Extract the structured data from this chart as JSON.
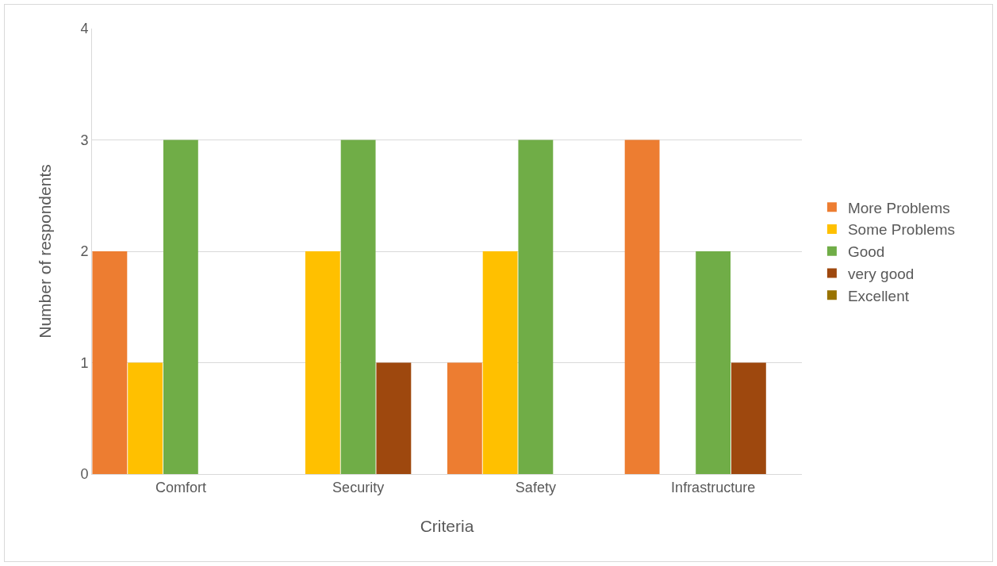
{
  "chart_data": {
    "type": "bar",
    "xlabel": "Criteria",
    "ylabel": "Number of respondents",
    "categories": [
      "Comfort",
      "Security",
      "Safety",
      "Infrastructure"
    ],
    "series": [
      {
        "name": "More Problems",
        "color": "#ed7d31",
        "values": [
          2,
          0,
          1,
          3
        ]
      },
      {
        "name": "Some Problems",
        "color": "#ffc000",
        "values": [
          1,
          2,
          2,
          0
        ]
      },
      {
        "name": "Good",
        "color": "#70ad47",
        "values": [
          3,
          3,
          3,
          2
        ]
      },
      {
        "name": "very good",
        "color": "#9e480e",
        "values": [
          0,
          1,
          0,
          1
        ]
      },
      {
        "name": "Excellent",
        "color": "#997300",
        "values": [
          0,
          0,
          0,
          0
        ]
      }
    ],
    "ylim": [
      0,
      4
    ],
    "yticks": [
      0,
      1,
      2,
      3,
      4
    ],
    "grid": "y",
    "legend": "right"
  }
}
